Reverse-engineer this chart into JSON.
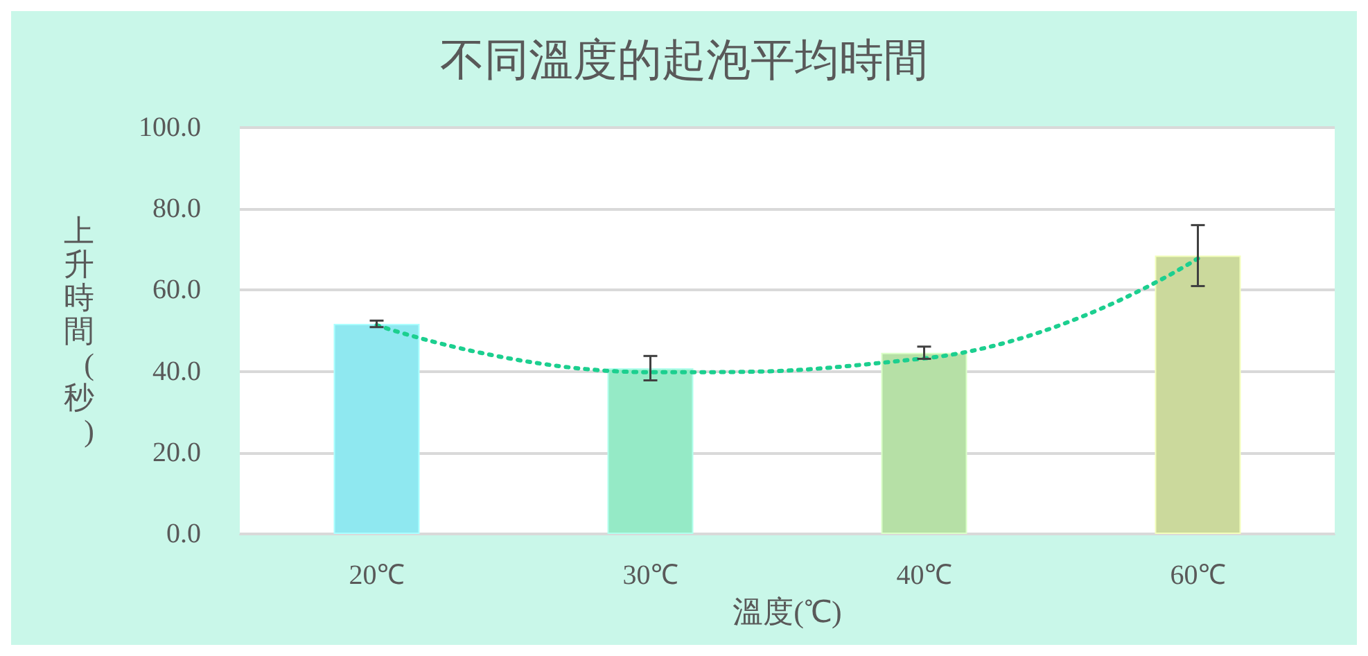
{
  "chart_data": {
    "type": "bar",
    "title": "不同溫度的起泡平均時間",
    "xlabel": "溫度(℃)",
    "ylabel": "上升時間(秒)",
    "categories": [
      "20℃",
      "30℃",
      "40℃",
      "60℃"
    ],
    "series": [
      {
        "values": [
          51.7,
          40.8,
          44.6,
          68.5
        ],
        "colors": [
          "#8fe8f0",
          "#95eac6",
          "#b6e0a6",
          "#cbd99c"
        ],
        "errors": [
          0.8,
          3.0,
          1.5,
          7.5
        ]
      },
      {
        "type": "line",
        "color": "#1ccf8f",
        "line_style": "dotted",
        "marker": "none",
        "x": [
          "20℃",
          "30℃",
          "40℃",
          "60℃"
        ],
        "values": [
          51.4,
          39.8,
          43.2,
          67.8
        ]
      }
    ],
    "ylim": [
      0,
      100
    ],
    "yticks": [
      {
        "value": 0,
        "label": "0.0"
      },
      {
        "value": 20,
        "label": "20.0"
      },
      {
        "value": 40,
        "label": "40.0"
      },
      {
        "value": 60,
        "label": "60.0"
      },
      {
        "value": 80,
        "label": "80.0"
      },
      {
        "value": 100,
        "label": "100.0"
      }
    ],
    "grid": "y"
  }
}
